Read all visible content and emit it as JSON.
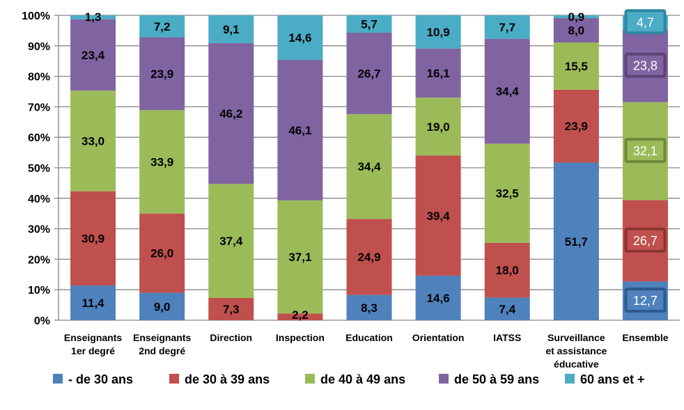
{
  "chart_data": {
    "type": "bar",
    "stacked": true,
    "percent_stacked": true,
    "categories": [
      [
        "Enseignants",
        "1er degré"
      ],
      [
        "Enseignants",
        "2nd degré"
      ],
      [
        "Direction"
      ],
      [
        "Inspection"
      ],
      [
        "Education"
      ],
      [
        "Orientation"
      ],
      [
        "IATSS"
      ],
      [
        "Surveillance",
        "et assistance",
        "éducative"
      ],
      [
        "Ensemble"
      ]
    ],
    "series": [
      {
        "name": "- de 30 ans",
        "color": "#4F81BD",
        "values": [
          11.4,
          9.0,
          0,
          0,
          8.3,
          14.6,
          7.4,
          51.7,
          12.7
        ],
        "labels": [
          "11,4",
          "9,0",
          "",
          "",
          "8,3",
          "14,6",
          "7,4",
          "51,7",
          "12,7"
        ]
      },
      {
        "name": "de 30 à 39 ans",
        "color": "#C0504D",
        "values": [
          30.9,
          26.0,
          7.3,
          2.2,
          24.9,
          39.4,
          18.0,
          23.9,
          26.7
        ],
        "labels": [
          "30,9",
          "26,0",
          "7,3",
          "2,2",
          "24,9",
          "39,4",
          "18,0",
          "23,9",
          "26,7"
        ]
      },
      {
        "name": "de 40 à 49 ans",
        "color": "#9BBB59",
        "values": [
          33.0,
          33.9,
          37.4,
          37.1,
          34.4,
          19.0,
          32.5,
          15.5,
          32.1
        ],
        "labels": [
          "33,0",
          "33,9",
          "37,4",
          "37,1",
          "34,4",
          "19,0",
          "32,5",
          "15,5",
          "32,1"
        ]
      },
      {
        "name": "de 50 à 59 ans",
        "color": "#8064A2",
        "values": [
          23.4,
          23.9,
          46.2,
          46.1,
          26.7,
          16.1,
          34.4,
          8.0,
          23.8
        ],
        "labels": [
          "23,4",
          "23,9",
          "46,2",
          "46,1",
          "26,7",
          "16,1",
          "34,4",
          "8,0",
          "23,8"
        ]
      },
      {
        "name": "60 ans et +",
        "color": "#4BACC6",
        "values": [
          1.3,
          7.2,
          9.1,
          14.6,
          5.7,
          10.9,
          7.7,
          0.9,
          4.7
        ],
        "labels": [
          "1,3",
          "7,2",
          "9,1",
          "14,6",
          "5,7",
          "10,9",
          "7,7",
          "0,9",
          "4,7"
        ]
      }
    ],
    "y_ticks": [
      "0%",
      "10%",
      "20%",
      "30%",
      "40%",
      "50%",
      "60%",
      "70%",
      "80%",
      "90%",
      "100%"
    ],
    "ylim": [
      0,
      100
    ],
    "grid": true,
    "legend": "bottom",
    "highlighted_category": "Ensemble",
    "highlight_box_colors": [
      "#2C5A8C",
      "#8C3432",
      "#6E8A3A",
      "#5A4677",
      "#2E86A0"
    ],
    "gridline_color": "#868686"
  }
}
